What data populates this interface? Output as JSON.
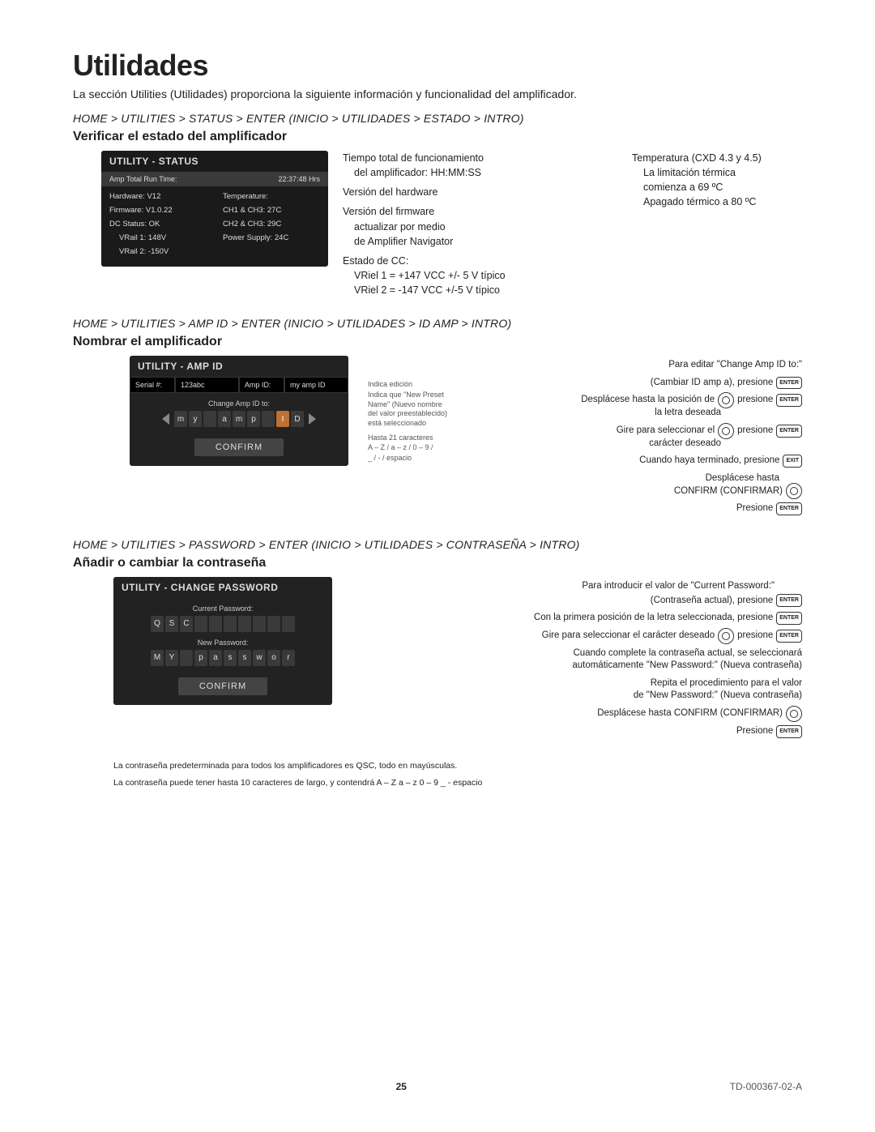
{
  "page": {
    "title": "Utilidades",
    "intro": "La sección Utilities (Utilidades) proporciona la siguiente información y funcionalidad del amplificador.",
    "page_number": "25",
    "doc_id": "TD-000367-02-A"
  },
  "status": {
    "nav": "HOME > UTILITIES > STATUS > ENTER (INICIO > UTILIDADES > ESTADO > INTRO)",
    "heading": "Verificar el estado del amplificador",
    "panel_title": "UTILITY - STATUS",
    "runtime_label": "Amp Total Run Time:",
    "runtime_value": "22:37:48 Hrs",
    "left_lines": [
      "Hardware: V12",
      "Firmware: V1.0.22",
      "DC Status:  OK"
    ],
    "left_indent": [
      "VRail 1: 148V",
      "VRail 2: -150V"
    ],
    "right_lines": [
      "Temperature:",
      "CH1 & CH3:  27C",
      "CH2 & CH3:  29C",
      "Power Supply:  24C"
    ],
    "expl_col1": {
      "l1": "Tiempo total de funcionamiento",
      "l2": "del amplificador: HH:MM:SS",
      "l3": "Versión del hardware",
      "l4": "Versión del firmware",
      "l5": "actualizar por medio",
      "l6": "de Amplifier Navigator",
      "l7": "Estado de CC:",
      "l8": "VRiel 1 = +147 VCC +/- 5 V típico",
      "l9": "VRiel 2 = -147 VCC +/-5 V típico"
    },
    "expl_col2": {
      "l1": "Temperatura (CXD 4.3 y 4.5)",
      "l2": "La limitación térmica",
      "l3": "comienza a 69 ºC",
      "l4": "Apagado térmico a 80 ºC"
    }
  },
  "ampid": {
    "nav": "HOME > UTILITIES > AMP ID > ENTER (INICIO > UTILIDADES > ID AMP > INTRO)",
    "heading": "Nombrar el amplificador",
    "panel_title": "UTILITY - AMP ID",
    "serial_label": "Serial #:",
    "serial_value": "123abc",
    "ampid_label": "Amp ID:",
    "ampid_value": "my amp ID",
    "change_label": "Change Amp ID to:",
    "chars": [
      "m",
      "y",
      "",
      "a",
      "m",
      "p",
      "",
      "I",
      "D"
    ],
    "highlight_index": 7,
    "confirm": "CONFIRM",
    "notes": {
      "n1": "Indica edición",
      "n2": "Indica que \"New Preset Name\" (Nuevo nombre del valor preestablecido) está seleccionado",
      "n3": "Hasta 21 caracteres",
      "n4": "A – Z / a – z / 0 – 9 /",
      "n5": "_ / - / espacio"
    },
    "steps": {
      "s0a": "Para editar \"Change Amp ID to:\"",
      "s0b": "(Cambiar ID amp a), presione",
      "s1a": "Desplácese hasta la posición de",
      "s1b": "la letra deseada",
      "s2a": "Gire para seleccionar el",
      "s2b": "carácter deseado",
      "s3": "Cuando haya terminado, presione",
      "s4a": "Desplácese hasta",
      "s4b": "CONFIRM (CONFIRMAR)",
      "s5": "Presione",
      "press": "presione",
      "enter": "ENTER",
      "exit": "EXIT"
    }
  },
  "pw": {
    "nav": "HOME > UTILITIES > PASSWORD > ENTER (INICIO > UTILIDADES > CONTRASEÑA > INTRO)",
    "heading": "Añadir o cambiar la contraseña",
    "panel_title": "UTILITY - CHANGE PASSWORD",
    "current_label": "Current Password:",
    "current_chars": [
      "Q",
      "S",
      "C",
      "",
      "",
      "",
      "",
      "",
      "",
      ""
    ],
    "new_label": "New Password:",
    "new_chars": [
      "M",
      "Y",
      "",
      "p",
      "a",
      "s",
      "s",
      "w",
      "o",
      "r"
    ],
    "confirm": "CONFIRM",
    "steps": {
      "s1a": "Para introducir el valor de \"Current Password:\"",
      "s1b": "(Contraseña actual), presione",
      "s2": "Con la primera posición de la letra seleccionada, presione",
      "s3": "Gire para seleccionar el carácter deseado",
      "s4a": "Cuando complete la contraseña actual, se seleccionará",
      "s4b": "automáticamente \"New Password:\" (Nueva contraseña)",
      "s5a": "Repita el procedimiento para el valor",
      "s5b": "de \"New Password:\" (Nueva contraseña)",
      "s6": "Desplácese hasta CONFIRM (CONFIRMAR)",
      "s7": "Presione",
      "press": "presione",
      "enter": "ENTER"
    },
    "foot1": "La contraseña predeterminada para todos los amplificadores es QSC, todo en mayúsculas.",
    "foot2": "La contraseña puede tener hasta 10 caracteres de largo, y contendrá A – Z  a – z  0 – 9  _  -  espacio"
  }
}
